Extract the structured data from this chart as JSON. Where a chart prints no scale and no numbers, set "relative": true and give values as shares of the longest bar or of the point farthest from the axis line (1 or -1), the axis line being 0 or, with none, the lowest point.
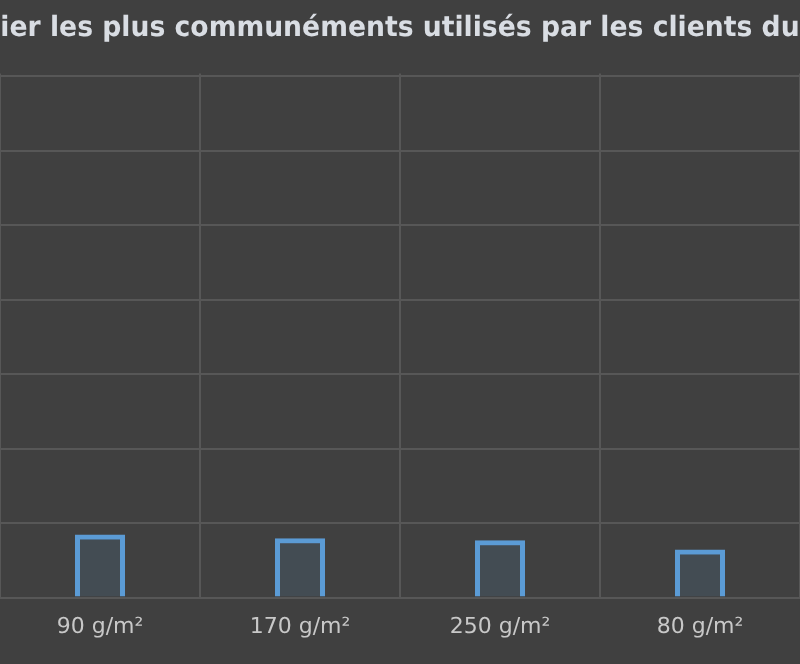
{
  "chart_data": {
    "type": "bar",
    "title": "ier les plus communéments utilisés par les clients du",
    "categories": [
      "90 g/m²",
      "170 g/m²",
      "250 g/m²",
      "80 g/m²"
    ],
    "values": [
      1,
      0.94,
      0.91,
      0.76
    ],
    "color": "#5b9bd5",
    "relative": true,
    "grid": true,
    "legend": false
  }
}
